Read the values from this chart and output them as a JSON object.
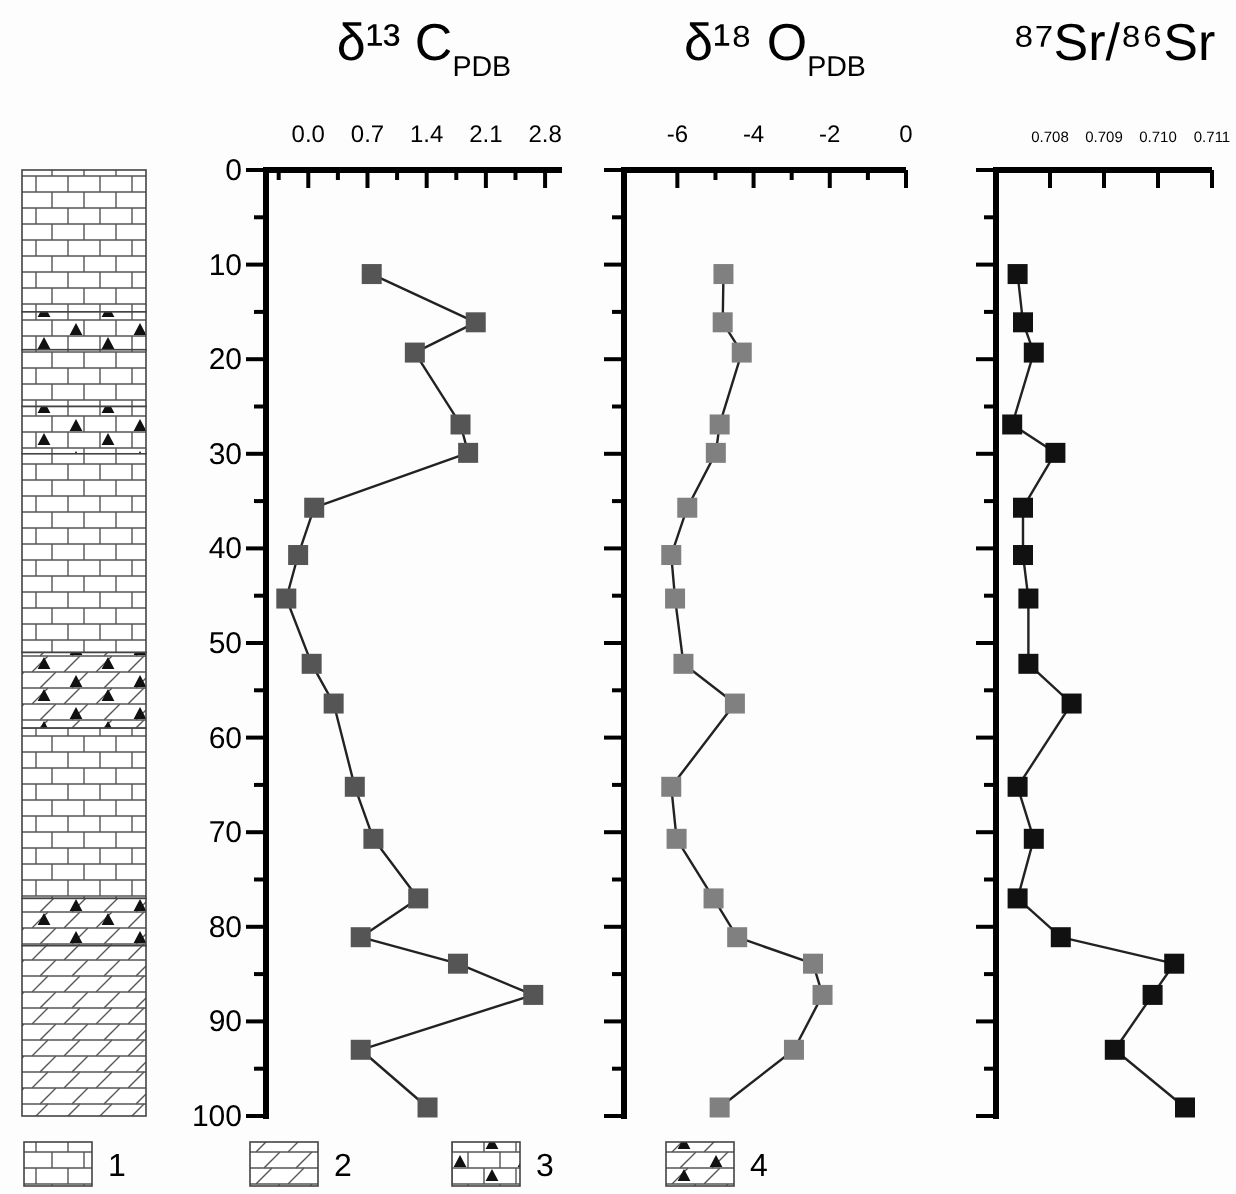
{
  "chart_data": [
    {
      "type": "line",
      "title": "δ¹³ C$_{PDB}$",
      "marker": "square",
      "line_style": "solid",
      "xlim": [
        -0.5,
        3.0
      ],
      "xticks": [
        {
          "value": -0.35,
          "label": null
        },
        {
          "value": 0,
          "label": "0.0"
        },
        {
          "value": 0.35,
          "label": null
        },
        0.7,
        {
          "value": 1.05,
          "label": null
        },
        1.4,
        {
          "value": 1.75,
          "label": null
        },
        2.1,
        {
          "value": 2.45,
          "label": null
        },
        2.8
      ],
      "ylim": [
        100,
        0
      ],
      "yticks": [
        0,
        {
          "value": 5,
          "label": null
        },
        10,
        {
          "value": 15,
          "label": null
        },
        20,
        {
          "value": 25,
          "label": null
        },
        30,
        {
          "value": 35,
          "label": null
        },
        40,
        {
          "value": 45,
          "label": null
        },
        50,
        {
          "value": 55,
          "label": null
        },
        60,
        {
          "value": 65,
          "label": null
        },
        70,
        {
          "value": 75,
          "label": null
        },
        80,
        {
          "value": 85,
          "label": null
        },
        90,
        {
          "value": 95,
          "label": null
        },
        100
      ],
      "annotations": [
        "1",
        "2",
        "3",
        "4"
      ],
      "series": [
        {
          "color": "#555555",
          "x": [
            0.75,
            1.98,
            1.26,
            1.8,
            1.89,
            0.07,
            -0.12,
            -0.26,
            0.04,
            0.3,
            0.55,
            0.77,
            1.3,
            0.62,
            1.77,
            2.66,
            0.62,
            1.41
          ],
          "values": [
            11.0,
            16.1,
            19.3,
            26.9,
            29.9,
            35.7,
            40.7,
            45.3,
            52.2,
            56.4,
            65.2,
            70.7,
            77.0,
            81.1,
            83.9,
            87.2,
            93.0,
            99.1
          ]
        }
      ]
    },
    {
      "type": "line",
      "title": "δ¹⁸ O$_{PDB}$",
      "marker": "square",
      "line_style": "solid",
      "tick_labels": "x",
      "xlim": [
        -7.4,
        0
      ],
      "xticks": [
        -6,
        {
          "value": -5,
          "label": null
        },
        -4,
        {
          "value": -3,
          "label": null
        },
        -2,
        {
          "value": -1,
          "label": null
        },
        0
      ],
      "ylim": [
        100,
        0
      ],
      "yticks": [
        0,
        {
          "value": 5,
          "label": null
        },
        10,
        {
          "value": 15,
          "label": null
        },
        20,
        {
          "value": 25,
          "label": null
        },
        30,
        {
          "value": 35,
          "label": null
        },
        40,
        {
          "value": 45,
          "label": null
        },
        50,
        {
          "value": 55,
          "label": null
        },
        60,
        {
          "value": 65,
          "label": null
        },
        70,
        {
          "value": 75,
          "label": null
        },
        80,
        {
          "value": 85,
          "label": null
        },
        90,
        {
          "value": 95,
          "label": null
        },
        100
      ],
      "series": [
        {
          "color": "#808080",
          "x": [
            -4.79,
            -4.81,
            -4.31,
            -4.89,
            -4.99,
            -5.74,
            -6.16,
            -6.06,
            -5.84,
            -4.49,
            -6.16,
            -6.02,
            -5.05,
            -4.43,
            -2.44,
            -2.19,
            -2.94,
            -4.89
          ],
          "values": [
            11.0,
            16.1,
            19.3,
            26.9,
            29.9,
            35.7,
            40.7,
            45.3,
            52.2,
            56.4,
            65.2,
            70.7,
            77.0,
            81.1,
            83.9,
            87.2,
            93.0,
            99.1
          ]
        }
      ]
    },
    {
      "type": "line",
      "title": "⁸⁷Sr/⁸⁶Sr",
      "marker": "square",
      "line_style": "solid",
      "tick_labels": "x",
      "xlim": [
        0.707,
        0.711
      ],
      "xticks": [
        0.708,
        0.709,
        {
          "value": 0.71,
          "label": "0.710"
        },
        0.711
      ],
      "ylim": [
        100,
        0
      ],
      "yticks": [
        0,
        {
          "value": 5,
          "label": null
        },
        10,
        {
          "value": 15,
          "label": null
        },
        20,
        {
          "value": 25,
          "label": null
        },
        30,
        {
          "value": 35,
          "label": null
        },
        40,
        {
          "value": 45,
          "label": null
        },
        50,
        {
          "value": 55,
          "label": null
        },
        60,
        {
          "value": 65,
          "label": null
        },
        70,
        {
          "value": 75,
          "label": null
        },
        80,
        {
          "value": 85,
          "label": null
        },
        90,
        {
          "value": 95,
          "label": null
        },
        100
      ],
      "series": [
        {
          "color": "#111111",
          "x": [
            0.7074,
            0.7075,
            0.7077,
            0.7073,
            0.7081,
            0.7075,
            0.7075,
            0.7076,
            0.7076,
            0.7084,
            0.7074,
            0.7077,
            0.7074,
            0.7082,
            0.7103,
            0.7099,
            0.7092,
            0.7105
          ],
          "values": [
            11.0,
            16.1,
            19.3,
            26.9,
            29.9,
            35.7,
            40.7,
            45.3,
            52.2,
            56.4,
            65.2,
            70.7,
            77.0,
            81.1,
            83.9,
            87.2,
            93.0,
            99.1
          ]
        }
      ]
    }
  ]
}
